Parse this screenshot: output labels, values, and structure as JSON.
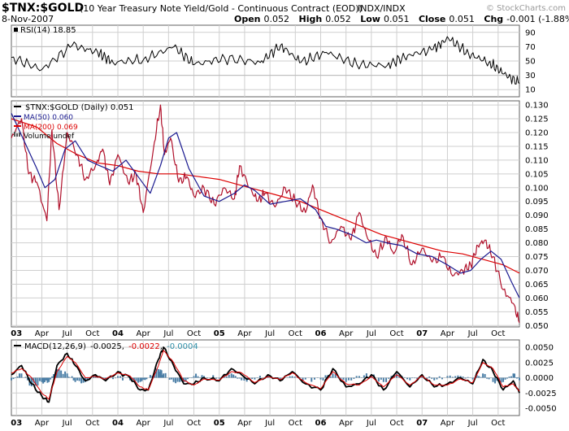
{
  "header": {
    "symbol": "$TNX:$GOLD",
    "description": "(10 Year Treasury Note Yield/Gold - Continuous Contract (EOD))",
    "exchange": "INDX/INDX",
    "watermark": "© StockCharts.com",
    "date": "8-Nov-2007",
    "open_label": "Open",
    "open": "0.052",
    "high_label": "High",
    "high": "0.052",
    "low_label": "Low",
    "low": "0.051",
    "close_label": "Close",
    "close": "0.051",
    "chg_label": "Chg",
    "chg": "-0.001 (-1.88%)",
    "down_marker": "▼"
  },
  "colors": {
    "price": "#b0102a",
    "ma50": "#1a1a90",
    "ma200": "#dd0000",
    "macd": "#000000",
    "signal": "#dd0000",
    "hist": "#4a7ea6",
    "grid": "#cfcfcf",
    "frame": "#606060",
    "rsi": "#000000",
    "rsi_band": "#bbbbbb",
    "hist_legend": "#2f8fa8"
  },
  "chart_data": [
    {
      "type": "line",
      "name": "RSI",
      "legend": "RSI(14) 18.85",
      "ylim": [
        0,
        100
      ],
      "tick_labels": [
        "90",
        "70",
        "50",
        "30",
        "10"
      ],
      "tick_values": [
        90,
        70,
        50,
        30,
        10
      ],
      "band_levels": [
        70,
        30
      ],
      "last_value": 18.85,
      "x": [
        0,
        0.06,
        0.12,
        0.17,
        0.2,
        0.26,
        0.32,
        0.36,
        0.42,
        0.49,
        0.53,
        0.57,
        0.62,
        0.68,
        0.74,
        0.78,
        0.83,
        0.86,
        0.9,
        0.94,
        0.97,
        1
      ],
      "values": [
        55,
        38,
        72,
        62,
        48,
        52,
        70,
        45,
        54,
        48,
        72,
        48,
        62,
        45,
        44,
        58,
        66,
        82,
        60,
        48,
        32,
        18.85
      ]
    },
    {
      "type": "line",
      "name": "Price",
      "title": "$TNX:$GOLD (Daily) 0.051",
      "ylim": [
        0.0495,
        0.1315
      ],
      "tick_labels": [
        "0.130",
        "0.125",
        "0.120",
        "0.115",
        "0.110",
        "0.105",
        "0.100",
        "0.095",
        "0.090",
        "0.085",
        "0.080",
        "0.075",
        "0.070",
        "0.065",
        "0.060",
        "0.055",
        "0.050"
      ],
      "tick_values": [
        0.13,
        0.125,
        0.12,
        0.115,
        0.11,
        0.105,
        0.1,
        0.095,
        0.09,
        0.085,
        0.08,
        0.075,
        0.07,
        0.065,
        0.06,
        0.055,
        0.05
      ],
      "x_tick_labels": [
        "03",
        "Apr",
        "Jul",
        "Oct",
        "04",
        "Apr",
        "Jul",
        "Oct",
        "05",
        "Apr",
        "Jul",
        "Oct",
        "06",
        "Apr",
        "Jul",
        "Oct",
        "07",
        "Apr",
        "Jul",
        "Oct"
      ],
      "x_tick_positions": [
        0,
        0.25,
        0.5,
        0.75,
        1,
        1.25,
        1.5,
        1.75,
        2,
        2.25,
        2.5,
        2.75,
        3,
        3.25,
        3.5,
        3.75,
        4,
        4.25,
        4.5,
        4.75
      ],
      "x_range": [
        -0.05,
        4.96
      ],
      "series": [
        {
          "name": "$TNX:$GOLD",
          "x": [
            -0.05,
            0.05,
            0.12,
            0.2,
            0.3,
            0.35,
            0.42,
            0.5,
            0.6,
            0.68,
            0.78,
            0.85,
            0.92,
            1.0,
            1.1,
            1.18,
            1.25,
            1.35,
            1.42,
            1.46,
            1.52,
            1.6,
            1.68,
            1.75,
            1.85,
            1.95,
            2.05,
            2.15,
            2.2,
            2.3,
            2.38,
            2.45,
            2.55,
            2.65,
            2.75,
            2.85,
            2.92,
            3.0,
            3.1,
            3.2,
            3.3,
            3.38,
            3.45,
            3.55,
            3.65,
            3.72,
            3.8,
            3.9,
            4.0,
            4.1,
            4.2,
            4.3,
            4.4,
            4.48,
            4.55,
            4.62,
            4.7,
            4.8,
            4.9,
            4.96
          ],
          "values": [
            0.118,
            0.125,
            0.105,
            0.102,
            0.088,
            0.121,
            0.092,
            0.12,
            0.112,
            0.103,
            0.108,
            0.114,
            0.101,
            0.112,
            0.102,
            0.105,
            0.091,
            0.114,
            0.13,
            0.112,
            0.118,
            0.102,
            0.104,
            0.097,
            0.1,
            0.094,
            0.1,
            0.096,
            0.108,
            0.1,
            0.095,
            0.098,
            0.093,
            0.1,
            0.095,
            0.091,
            0.101,
            0.089,
            0.08,
            0.086,
            0.081,
            0.091,
            0.083,
            0.075,
            0.082,
            0.076,
            0.083,
            0.072,
            0.078,
            0.073,
            0.075,
            0.068,
            0.07,
            0.072,
            0.079,
            0.081,
            0.075,
            0.063,
            0.058,
            0.051
          ]
        },
        {
          "name": "MA(50) 0.060",
          "x": [
            -0.05,
            0.1,
            0.2,
            0.28,
            0.38,
            0.48,
            0.58,
            0.7,
            0.82,
            0.95,
            1.08,
            1.2,
            1.32,
            1.42,
            1.5,
            1.58,
            1.7,
            1.85,
            2.0,
            2.15,
            2.25,
            2.35,
            2.5,
            2.65,
            2.8,
            2.95,
            3.05,
            3.15,
            3.3,
            3.45,
            3.55,
            3.65,
            3.8,
            3.95,
            4.1,
            4.25,
            4.38,
            4.48,
            4.58,
            4.68,
            4.78,
            4.88,
            4.96
          ],
          "values": [
            0.127,
            0.115,
            0.107,
            0.1,
            0.103,
            0.114,
            0.117,
            0.11,
            0.108,
            0.106,
            0.11,
            0.104,
            0.098,
            0.108,
            0.118,
            0.12,
            0.107,
            0.097,
            0.095,
            0.098,
            0.101,
            0.099,
            0.094,
            0.095,
            0.096,
            0.092,
            0.086,
            0.085,
            0.083,
            0.08,
            0.081,
            0.08,
            0.079,
            0.076,
            0.075,
            0.072,
            0.069,
            0.07,
            0.074,
            0.077,
            0.074,
            0.066,
            0.06
          ]
        },
        {
          "name": "MA(200) 0.069",
          "x": [
            -0.05,
            0.2,
            0.4,
            0.6,
            0.8,
            1.0,
            1.2,
            1.4,
            1.6,
            1.8,
            2.0,
            2.2,
            2.4,
            2.6,
            2.8,
            3.0,
            3.2,
            3.4,
            3.6,
            3.8,
            4.0,
            4.2,
            4.4,
            4.6,
            4.8,
            4.96
          ],
          "values": [
            0.125,
            0.122,
            0.116,
            0.112,
            0.109,
            0.108,
            0.106,
            0.105,
            0.105,
            0.104,
            0.103,
            0.101,
            0.099,
            0.097,
            0.095,
            0.092,
            0.089,
            0.086,
            0.083,
            0.081,
            0.079,
            0.077,
            0.076,
            0.074,
            0.072,
            0.069
          ]
        }
      ],
      "legend_volume": "Volume undef"
    },
    {
      "type": "line",
      "name": "MACD",
      "legend_prefix": "MACD(12,26,9)",
      "legend_macd": "-0.0025",
      "legend_signal": "-0.0022",
      "legend_hist": "-0.0004",
      "ylim": [
        -0.0062,
        0.0062
      ],
      "tick_labels": [
        "0.0050",
        "0.0025",
        "0.0000",
        "-0.0025",
        "-0.0050"
      ],
      "tick_values": [
        0.005,
        0.0025,
        0,
        -0.0025,
        -0.005
      ],
      "x": [
        -0.05,
        0.05,
        0.15,
        0.25,
        0.32,
        0.4,
        0.5,
        0.58,
        0.68,
        0.78,
        0.88,
        1.0,
        1.12,
        1.22,
        1.3,
        1.4,
        1.45,
        1.55,
        1.65,
        1.75,
        1.85,
        2.0,
        2.12,
        2.22,
        2.35,
        2.48,
        2.6,
        2.72,
        2.85,
        3.0,
        3.12,
        3.25,
        3.38,
        3.5,
        3.62,
        3.75,
        3.88,
        4.0,
        4.12,
        4.25,
        4.38,
        4.5,
        4.6,
        4.7,
        4.8,
        4.9,
        4.96
      ],
      "macd": [
        0.0005,
        0.002,
        -0.001,
        -0.003,
        -0.004,
        0.002,
        0.004,
        0.002,
        -0.0005,
        0.0005,
        -0.0005,
        0.001,
        0.0,
        -0.002,
        -0.002,
        0.003,
        0.005,
        0.002,
        -0.001,
        -0.001,
        0.0,
        -0.0005,
        0.0015,
        0.0005,
        -0.001,
        0.0005,
        -0.0005,
        0.001,
        -0.001,
        -0.002,
        0.0015,
        -0.0015,
        -0.001,
        0.0005,
        -0.002,
        0.001,
        -0.0015,
        0.0005,
        -0.0015,
        -0.001,
        0.0,
        -0.001,
        0.003,
        0.001,
        -0.002,
        -0.0005,
        -0.0025
      ],
      "signal": [
        0.0008,
        0.0015,
        0.0,
        -0.0025,
        -0.0035,
        0.001,
        0.0035,
        0.0025,
        0.0,
        0.0002,
        -0.0002,
        0.0008,
        0.0003,
        -0.0015,
        -0.002,
        0.002,
        0.0045,
        0.0025,
        -0.0005,
        -0.0012,
        -0.0002,
        -0.0004,
        0.001,
        0.0008,
        -0.0008,
        0.0002,
        -0.0003,
        0.0008,
        -0.0008,
        -0.0018,
        0.001,
        -0.001,
        -0.0012,
        0.0002,
        -0.0015,
        0.0005,
        -0.0012,
        0.0003,
        -0.0012,
        -0.0012,
        -0.0002,
        -0.0008,
        0.0025,
        0.0015,
        -0.0015,
        -0.001,
        -0.0022
      ]
    }
  ],
  "macd_x_labels": [
    "03",
    "Apr",
    "Jul",
    "Oct",
    "04",
    "Apr",
    "Jul",
    "Oct",
    "05",
    "Apr",
    "Jul",
    "Oct",
    "06",
    "Apr",
    "Jul",
    "Oct",
    "07",
    "Apr",
    "Jul",
    "Oct"
  ]
}
